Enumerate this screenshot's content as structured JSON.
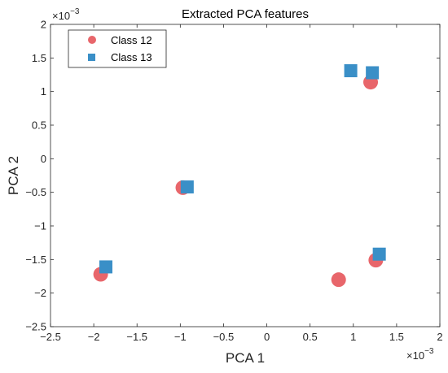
{
  "chart_data": {
    "type": "scatter",
    "title": "Extracted PCA features",
    "xlabel": "PCA 1",
    "ylabel": "PCA 2",
    "x_multiplier": "×10",
    "x_exponent": "−3",
    "y_multiplier": "×10",
    "y_exponent": "−3",
    "xlim": [
      -2.5,
      2
    ],
    "ylim": [
      -2.5,
      2
    ],
    "x_ticks": [
      -2.5,
      -2,
      -1.5,
      -1,
      -0.5,
      0,
      0.5,
      1,
      1.5,
      2
    ],
    "y_ticks": [
      -2.5,
      -2,
      -1.5,
      -1,
      -0.5,
      0,
      0.5,
      1,
      1.5,
      2
    ],
    "x_tick_labels": [
      "−2.5",
      "−2",
      "−1.5",
      "−1",
      "−0.5",
      "0",
      "0.5",
      "1",
      "1.5",
      "2"
    ],
    "y_tick_labels": [
      "−2.5",
      "−2",
      "−1.5",
      "−1",
      "−0.5",
      "0",
      "0.5",
      "1",
      "1.5",
      "2"
    ],
    "legend_position": "top-left",
    "series": [
      {
        "name": "Class 12",
        "marker": "circle",
        "color": "#e8666b",
        "points": [
          {
            "x": -1.92,
            "y": -1.72
          },
          {
            "x": -0.97,
            "y": -0.43
          },
          {
            "x": 0.83,
            "y": -1.8
          },
          {
            "x": 1.2,
            "y": 1.14
          },
          {
            "x": 1.26,
            "y": -1.51
          }
        ]
      },
      {
        "name": "Class 13",
        "marker": "square",
        "color": "#3a8fc7",
        "points": [
          {
            "x": -1.86,
            "y": -1.61
          },
          {
            "x": -0.92,
            "y": -0.42
          },
          {
            "x": 0.97,
            "y": 1.31
          },
          {
            "x": 1.22,
            "y": 1.28
          },
          {
            "x": 1.3,
            "y": -1.42
          }
        ]
      }
    ]
  }
}
